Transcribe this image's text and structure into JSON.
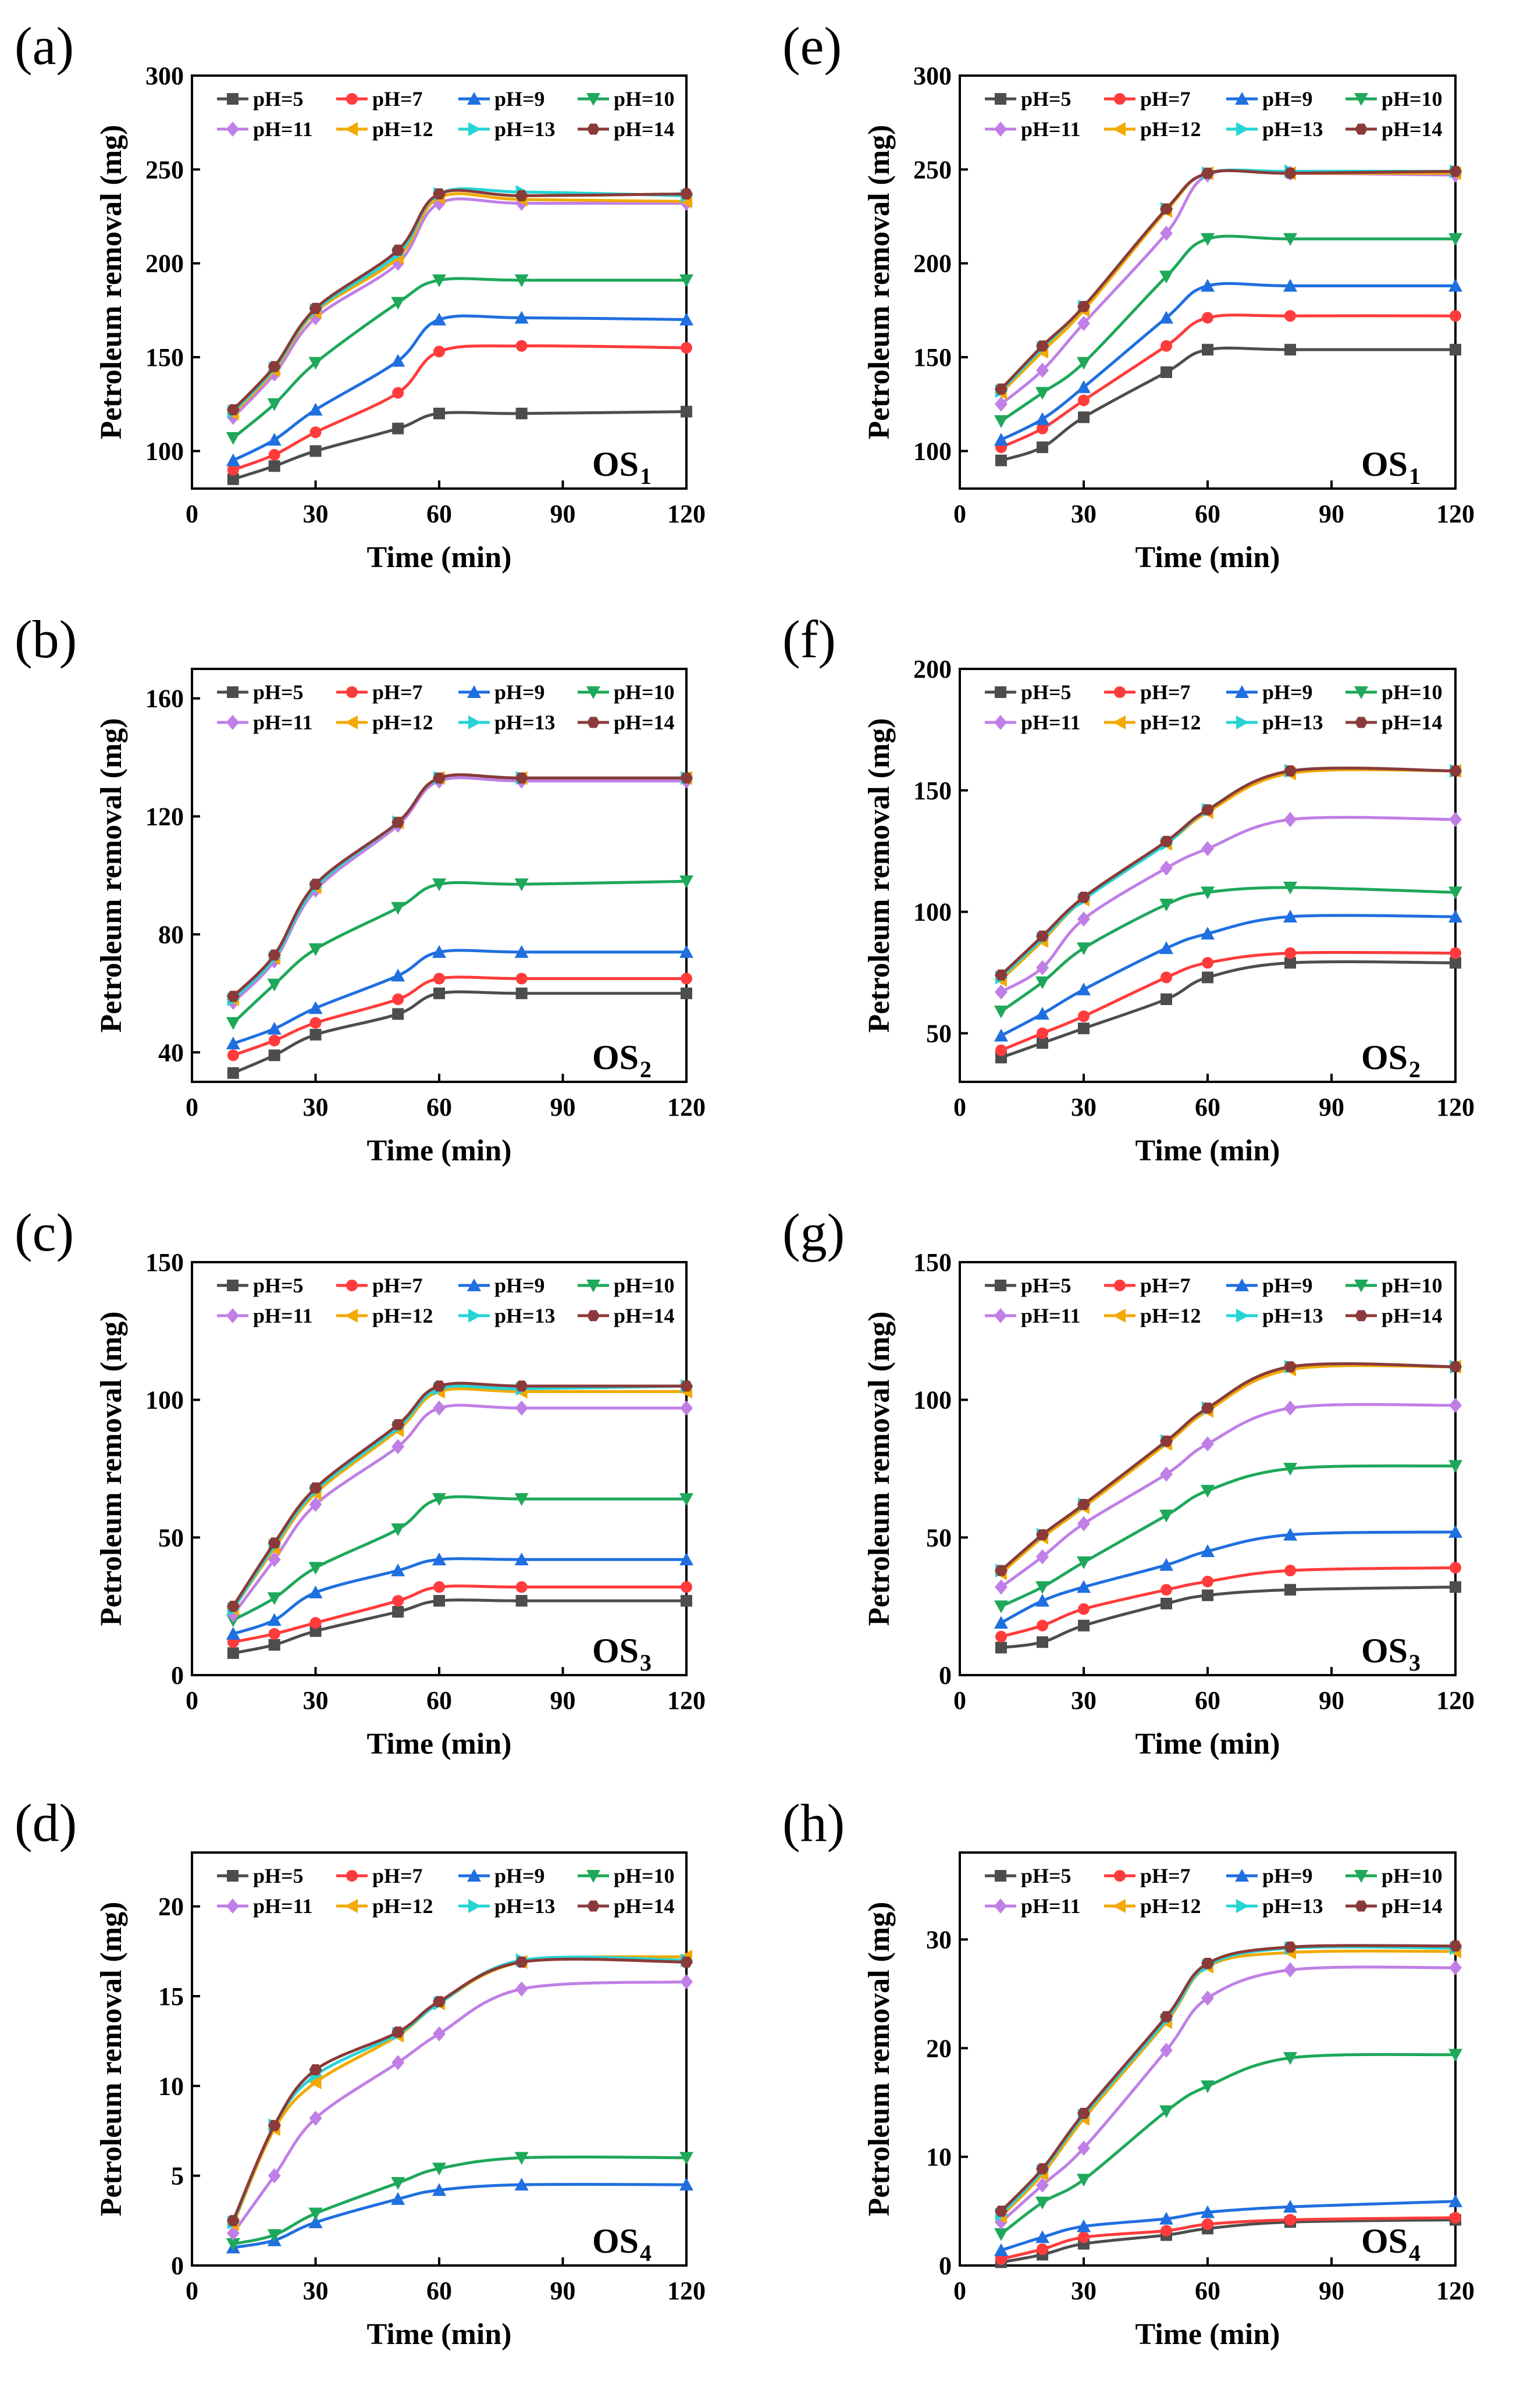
{
  "colors": {
    "pH=5": "#4d4d4d",
    "pH=7": "#ff3b3b",
    "pH=9": "#1f6fe0",
    "pH=10": "#1ea85a",
    "pH=11": "#c07fe6",
    "pH=12": "#f2a900",
    "pH=13": "#26d4d4",
    "pH=14": "#8b3a3a"
  },
  "markers": {
    "pH=5": "square",
    "pH=7": "circle",
    "pH=9": "triangle-up",
    "pH=10": "triangle-down",
    "pH=11": "diamond",
    "pH=12": "triangle-left",
    "pH=13": "triangle-right",
    "pH=14": "hexagon"
  },
  "chart_data": [
    {
      "panel": "(a)",
      "type": "line",
      "sample": "OS",
      "sample_sub": "1",
      "xlabel": "Time (min)",
      "ylabel": "Petroleum removal (mg)",
      "xlim": [
        0,
        120
      ],
      "ylim": [
        80,
        300
      ],
      "xticks": [
        0,
        30,
        60,
        90,
        120
      ],
      "yticks": [
        100,
        150,
        200,
        250,
        300
      ],
      "x": [
        10,
        20,
        30,
        50,
        60,
        80,
        120
      ],
      "series": [
        {
          "name": "pH=5",
          "values": [
            85,
            92,
            100,
            112,
            120,
            120,
            121
          ]
        },
        {
          "name": "pH=7",
          "values": [
            90,
            98,
            110,
            131,
            153,
            156,
            155
          ]
        },
        {
          "name": "pH=9",
          "values": [
            95,
            106,
            122,
            148,
            170,
            171,
            170
          ]
        },
        {
          "name": "pH=10",
          "values": [
            107,
            125,
            147,
            179,
            191,
            191,
            191
          ]
        },
        {
          "name": "pH=11",
          "values": [
            118,
            141,
            171,
            200,
            232,
            232,
            232
          ]
        },
        {
          "name": "pH=12",
          "values": [
            120,
            143,
            174,
            203,
            235,
            234,
            233
          ]
        },
        {
          "name": "pH=13",
          "values": [
            121,
            144,
            175,
            205,
            237,
            238,
            236
          ]
        },
        {
          "name": "pH=14",
          "values": [
            122,
            145,
            176,
            207,
            237,
            236,
            237
          ]
        }
      ]
    },
    {
      "panel": "(e)",
      "type": "line",
      "sample": "OS",
      "sample_sub": "1",
      "xlabel": "Time (min)",
      "ylabel": "Petroleum removal (mg)",
      "xlim": [
        0,
        120
      ],
      "ylim": [
        80,
        300
      ],
      "xticks": [
        0,
        30,
        60,
        90,
        120
      ],
      "yticks": [
        100,
        150,
        200,
        250,
        300
      ],
      "x": [
        10,
        20,
        30,
        50,
        60,
        80,
        120
      ],
      "series": [
        {
          "name": "pH=5",
          "values": [
            95,
            102,
            118,
            142,
            154,
            154,
            154
          ]
        },
        {
          "name": "pH=7",
          "values": [
            102,
            112,
            127,
            156,
            171,
            172,
            172
          ]
        },
        {
          "name": "pH=9",
          "values": [
            106,
            117,
            134,
            171,
            188,
            188,
            188
          ]
        },
        {
          "name": "pH=10",
          "values": [
            116,
            131,
            147,
            193,
            213,
            213,
            213
          ]
        },
        {
          "name": "pH=11",
          "values": [
            125,
            143,
            168,
            216,
            247,
            248,
            247
          ]
        },
        {
          "name": "pH=12",
          "values": [
            131,
            153,
            175,
            228,
            248,
            248,
            248
          ]
        },
        {
          "name": "pH=13",
          "values": [
            132,
            155,
            177,
            229,
            248,
            249,
            249
          ]
        },
        {
          "name": "pH=14",
          "values": [
            133,
            156,
            177,
            229,
            248,
            248,
            249
          ]
        }
      ]
    },
    {
      "panel": "(b)",
      "type": "line",
      "sample": "OS",
      "sample_sub": "2",
      "xlabel": "Time (min)",
      "ylabel": "Petroleum removal (mg)",
      "xlim": [
        0,
        120
      ],
      "ylim": [
        30,
        170
      ],
      "xticks": [
        0,
        30,
        60,
        90,
        120
      ],
      "yticks": [
        40,
        80,
        120,
        160
      ],
      "x": [
        10,
        20,
        30,
        50,
        60,
        80,
        120
      ],
      "series": [
        {
          "name": "pH=5",
          "values": [
            33,
            39,
            46,
            53,
            60,
            60,
            60
          ]
        },
        {
          "name": "pH=7",
          "values": [
            39,
            44,
            50,
            58,
            65,
            65,
            65
          ]
        },
        {
          "name": "pH=9",
          "values": [
            43,
            48,
            55,
            66,
            74,
            74,
            74
          ]
        },
        {
          "name": "pH=10",
          "values": [
            50,
            63,
            75,
            89,
            97,
            97,
            98
          ]
        },
        {
          "name": "pH=11",
          "values": [
            57,
            71,
            95,
            117,
            132,
            132,
            132
          ]
        },
        {
          "name": "pH=12",
          "values": [
            58,
            72,
            96,
            118,
            133,
            133,
            133
          ]
        },
        {
          "name": "pH=13",
          "values": [
            58,
            72,
            96,
            118,
            133,
            133,
            133
          ]
        },
        {
          "name": "pH=14",
          "values": [
            59,
            73,
            97,
            118,
            133,
            133,
            133
          ]
        }
      ]
    },
    {
      "panel": "(f)",
      "type": "line",
      "sample": "OS",
      "sample_sub": "2",
      "xlabel": "Time (min)",
      "ylabel": "Petroleum removal (mg)",
      "xlim": [
        0,
        120
      ],
      "ylim": [
        30,
        200
      ],
      "xticks": [
        0,
        30,
        60,
        90,
        120
      ],
      "yticks": [
        50,
        100,
        150,
        200
      ],
      "x": [
        10,
        20,
        30,
        50,
        60,
        80,
        120
      ],
      "series": [
        {
          "name": "pH=5",
          "values": [
            40,
            46,
            52,
            64,
            73,
            79,
            79
          ]
        },
        {
          "name": "pH=7",
          "values": [
            43,
            50,
            57,
            73,
            79,
            83,
            83
          ]
        },
        {
          "name": "pH=9",
          "values": [
            49,
            58,
            68,
            85,
            91,
            98,
            98
          ]
        },
        {
          "name": "pH=10",
          "values": [
            59,
            71,
            85,
            103,
            108,
            110,
            108
          ]
        },
        {
          "name": "pH=11",
          "values": [
            67,
            77,
            97,
            118,
            126,
            138,
            138
          ]
        },
        {
          "name": "pH=12",
          "values": [
            72,
            88,
            105,
            128,
            141,
            157,
            158
          ]
        },
        {
          "name": "pH=13",
          "values": [
            73,
            89,
            105,
            128,
            142,
            158,
            158
          ]
        },
        {
          "name": "pH=14",
          "values": [
            74,
            90,
            106,
            129,
            142,
            158,
            158
          ]
        }
      ]
    },
    {
      "panel": "(c)",
      "type": "line",
      "sample": "OS",
      "sample_sub": "3",
      "xlabel": "Time (min)",
      "ylabel": "Petroleum removal (mg)",
      "xlim": [
        0,
        120
      ],
      "ylim": [
        0,
        150
      ],
      "xticks": [
        0,
        30,
        60,
        90,
        120
      ],
      "yticks": [
        0,
        50,
        100,
        150
      ],
      "x": [
        10,
        20,
        30,
        50,
        60,
        80,
        120
      ],
      "series": [
        {
          "name": "pH=5",
          "values": [
            8,
            11,
            16,
            23,
            27,
            27,
            27
          ]
        },
        {
          "name": "pH=7",
          "values": [
            12,
            15,
            19,
            27,
            32,
            32,
            32
          ]
        },
        {
          "name": "pH=9",
          "values": [
            15,
            20,
            30,
            38,
            42,
            42,
            42
          ]
        },
        {
          "name": "pH=10",
          "values": [
            20,
            28,
            39,
            53,
            64,
            64,
            64
          ]
        },
        {
          "name": "pH=11",
          "values": [
            22,
            42,
            62,
            83,
            97,
            97,
            97
          ]
        },
        {
          "name": "pH=12",
          "values": [
            24,
            46,
            66,
            89,
            103,
            103,
            103
          ]
        },
        {
          "name": "pH=13",
          "values": [
            24,
            47,
            67,
            90,
            104,
            104,
            105
          ]
        },
        {
          "name": "pH=14",
          "values": [
            25,
            48,
            68,
            91,
            105,
            105,
            105
          ]
        }
      ]
    },
    {
      "panel": "(g)",
      "type": "line",
      "sample": "OS",
      "sample_sub": "3",
      "xlabel": "Time (min)",
      "ylabel": "Petroleum removal (mg)",
      "xlim": [
        0,
        120
      ],
      "ylim": [
        0,
        150
      ],
      "xticks": [
        0,
        30,
        60,
        90,
        120
      ],
      "yticks": [
        0,
        50,
        100,
        150
      ],
      "x": [
        10,
        20,
        30,
        50,
        60,
        80,
        120
      ],
      "series": [
        {
          "name": "pH=5",
          "values": [
            10,
            12,
            18,
            26,
            29,
            31,
            32
          ]
        },
        {
          "name": "pH=7",
          "values": [
            14,
            18,
            24,
            31,
            34,
            38,
            39
          ]
        },
        {
          "name": "pH=9",
          "values": [
            19,
            27,
            32,
            40,
            45,
            51,
            52
          ]
        },
        {
          "name": "pH=10",
          "values": [
            25,
            32,
            41,
            58,
            67,
            75,
            76
          ]
        },
        {
          "name": "pH=11",
          "values": [
            32,
            43,
            55,
            73,
            84,
            97,
            98
          ]
        },
        {
          "name": "pH=12",
          "values": [
            37,
            50,
            61,
            84,
            96,
            111,
            112
          ]
        },
        {
          "name": "pH=13",
          "values": [
            38,
            51,
            62,
            85,
            97,
            112,
            112
          ]
        },
        {
          "name": "pH=14",
          "values": [
            38,
            51,
            62,
            85,
            97,
            112,
            112
          ]
        }
      ]
    },
    {
      "panel": "(d)",
      "type": "line",
      "sample": "OS",
      "sample_sub": "4",
      "xlabel": "Time (min)",
      "ylabel": "Petroleum removal (mg)",
      "xlim": [
        0,
        120
      ],
      "ylim": [
        0,
        23
      ],
      "xticks": [
        0,
        30,
        60,
        90,
        120
      ],
      "yticks": [
        0,
        5,
        10,
        15,
        20
      ],
      "x": [
        10,
        20,
        30,
        50,
        60,
        80,
        120
      ],
      "series": [
        {
          "name": "pH=5",
          "values": [
            null,
            null,
            null,
            null,
            null,
            null,
            null
          ]
        },
        {
          "name": "pH=7",
          "values": [
            null,
            null,
            null,
            null,
            null,
            null,
            null
          ]
        },
        {
          "name": "pH=9",
          "values": [
            1.0,
            1.4,
            2.4,
            3.7,
            4.2,
            4.5,
            4.5
          ]
        },
        {
          "name": "pH=10",
          "values": [
            1.2,
            1.7,
            2.9,
            4.6,
            5.4,
            6.0,
            6.0
          ]
        },
        {
          "name": "pH=11",
          "values": [
            1.8,
            5.0,
            8.2,
            11.3,
            12.9,
            15.4,
            15.8
          ]
        },
        {
          "name": "pH=12",
          "values": [
            2.3,
            7.6,
            10.2,
            12.8,
            14.6,
            16.9,
            17.2
          ]
        },
        {
          "name": "pH=13",
          "values": [
            2.4,
            7.8,
            10.6,
            12.9,
            14.6,
            17.0,
            17.0
          ]
        },
        {
          "name": "pH=14",
          "values": [
            2.5,
            7.8,
            10.9,
            13.0,
            14.7,
            16.9,
            16.9
          ]
        }
      ]
    },
    {
      "panel": "(h)",
      "type": "line",
      "sample": "OS",
      "sample_sub": "4",
      "xlabel": "Time (min)",
      "ylabel": "Petroleum removal (mg)",
      "xlim": [
        0,
        120
      ],
      "ylim": [
        0,
        38
      ],
      "xticks": [
        0,
        30,
        60,
        90,
        120
      ],
      "yticks": [
        0,
        10,
        20,
        30
      ],
      "x": [
        10,
        20,
        30,
        50,
        60,
        80,
        120
      ],
      "series": [
        {
          "name": "pH=5",
          "values": [
            0.3,
            1.0,
            2.0,
            2.8,
            3.4,
            4.0,
            4.2
          ]
        },
        {
          "name": "pH=7",
          "values": [
            0.6,
            1.5,
            2.6,
            3.2,
            3.8,
            4.2,
            4.4
          ]
        },
        {
          "name": "pH=9",
          "values": [
            1.4,
            2.6,
            3.6,
            4.3,
            4.9,
            5.4,
            5.9
          ]
        },
        {
          "name": "pH=10",
          "values": [
            2.9,
            5.8,
            7.9,
            14.2,
            16.5,
            19.1,
            19.4
          ]
        },
        {
          "name": "pH=11",
          "values": [
            4.0,
            7.4,
            10.8,
            19.8,
            24.6,
            27.2,
            27.4
          ]
        },
        {
          "name": "pH=12",
          "values": [
            4.5,
            8.4,
            13.5,
            22.4,
            27.5,
            28.8,
            28.9
          ]
        },
        {
          "name": "pH=13",
          "values": [
            4.7,
            8.7,
            13.8,
            22.6,
            27.6,
            29.2,
            29.2
          ]
        },
        {
          "name": "pH=14",
          "values": [
            5.0,
            8.9,
            14.0,
            22.9,
            27.8,
            29.3,
            29.4
          ]
        }
      ]
    }
  ]
}
